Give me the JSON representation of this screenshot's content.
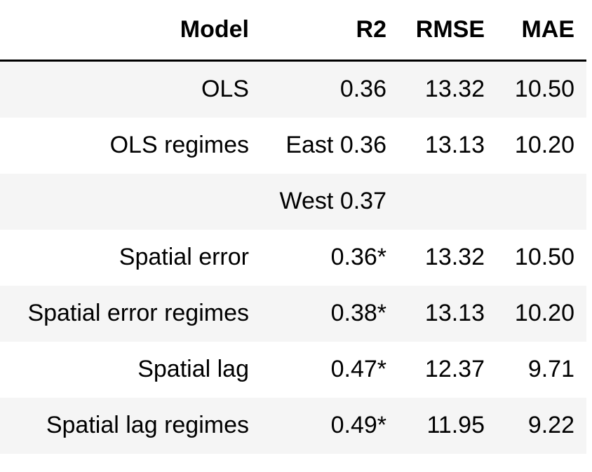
{
  "table": {
    "headers": {
      "model": "Model",
      "r2": "R2",
      "rmse": "RMSE",
      "mae": "MAE"
    },
    "rows": [
      {
        "model": "OLS",
        "r2": "0.36",
        "rmse": "13.32",
        "mae": "10.50"
      },
      {
        "model": "OLS regimes",
        "r2": "East 0.36",
        "rmse": "13.13",
        "mae": "10.20"
      },
      {
        "model": "",
        "r2": "West 0.37",
        "rmse": "",
        "mae": ""
      },
      {
        "model": "Spatial error",
        "r2": "0.36*",
        "rmse": "13.32",
        "mae": "10.50"
      },
      {
        "model": "Spatial error regimes",
        "r2": "0.38*",
        "rmse": "13.13",
        "mae": "10.20"
      },
      {
        "model": "Spatial lag",
        "r2": "0.47*",
        "rmse": "12.37",
        "mae": "9.71"
      },
      {
        "model": "Spatial lag regimes",
        "r2": "0.49*",
        "rmse": "11.95",
        "mae": "9.22"
      }
    ]
  }
}
